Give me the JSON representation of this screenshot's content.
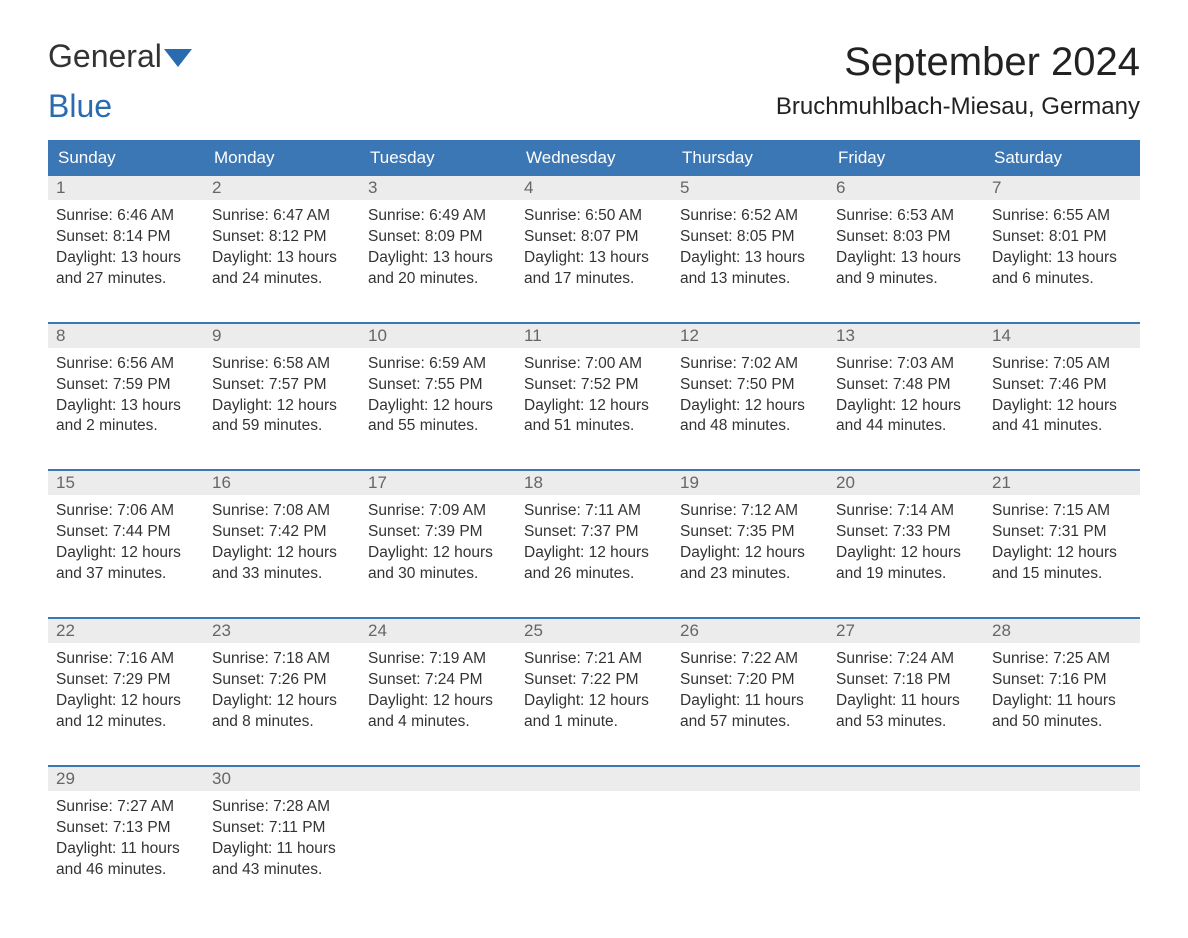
{
  "logo": {
    "text_general": "General",
    "text_blue": "Blue"
  },
  "title": "September 2024",
  "location": "Bruchmuhlbach-Miesau, Germany",
  "colors": {
    "header_bg": "#3b76b5",
    "header_text": "#ffffff",
    "daynum_bg": "#ececec",
    "daynum_text": "#666666",
    "body_text": "#333333",
    "week_border": "#3b76b5",
    "logo_blue": "#2a6bb0",
    "background": "#ffffff"
  },
  "typography": {
    "month_title_fontsize": 40,
    "location_fontsize": 24,
    "dow_fontsize": 17,
    "daynum_fontsize": 17,
    "cell_fontsize": 15.5,
    "logo_fontsize": 32
  },
  "days_of_week": [
    "Sunday",
    "Monday",
    "Tuesday",
    "Wednesday",
    "Thursday",
    "Friday",
    "Saturday"
  ],
  "weeks": [
    [
      {
        "n": "1",
        "sunrise": "Sunrise: 6:46 AM",
        "sunset": "Sunset: 8:14 PM",
        "day1": "Daylight: 13 hours",
        "day2": "and 27 minutes."
      },
      {
        "n": "2",
        "sunrise": "Sunrise: 6:47 AM",
        "sunset": "Sunset: 8:12 PM",
        "day1": "Daylight: 13 hours",
        "day2": "and 24 minutes."
      },
      {
        "n": "3",
        "sunrise": "Sunrise: 6:49 AM",
        "sunset": "Sunset: 8:09 PM",
        "day1": "Daylight: 13 hours",
        "day2": "and 20 minutes."
      },
      {
        "n": "4",
        "sunrise": "Sunrise: 6:50 AM",
        "sunset": "Sunset: 8:07 PM",
        "day1": "Daylight: 13 hours",
        "day2": "and 17 minutes."
      },
      {
        "n": "5",
        "sunrise": "Sunrise: 6:52 AM",
        "sunset": "Sunset: 8:05 PM",
        "day1": "Daylight: 13 hours",
        "day2": "and 13 minutes."
      },
      {
        "n": "6",
        "sunrise": "Sunrise: 6:53 AM",
        "sunset": "Sunset: 8:03 PM",
        "day1": "Daylight: 13 hours",
        "day2": "and 9 minutes."
      },
      {
        "n": "7",
        "sunrise": "Sunrise: 6:55 AM",
        "sunset": "Sunset: 8:01 PM",
        "day1": "Daylight: 13 hours",
        "day2": "and 6 minutes."
      }
    ],
    [
      {
        "n": "8",
        "sunrise": "Sunrise: 6:56 AM",
        "sunset": "Sunset: 7:59 PM",
        "day1": "Daylight: 13 hours",
        "day2": "and 2 minutes."
      },
      {
        "n": "9",
        "sunrise": "Sunrise: 6:58 AM",
        "sunset": "Sunset: 7:57 PM",
        "day1": "Daylight: 12 hours",
        "day2": "and 59 minutes."
      },
      {
        "n": "10",
        "sunrise": "Sunrise: 6:59 AM",
        "sunset": "Sunset: 7:55 PM",
        "day1": "Daylight: 12 hours",
        "day2": "and 55 minutes."
      },
      {
        "n": "11",
        "sunrise": "Sunrise: 7:00 AM",
        "sunset": "Sunset: 7:52 PM",
        "day1": "Daylight: 12 hours",
        "day2": "and 51 minutes."
      },
      {
        "n": "12",
        "sunrise": "Sunrise: 7:02 AM",
        "sunset": "Sunset: 7:50 PM",
        "day1": "Daylight: 12 hours",
        "day2": "and 48 minutes."
      },
      {
        "n": "13",
        "sunrise": "Sunrise: 7:03 AM",
        "sunset": "Sunset: 7:48 PM",
        "day1": "Daylight: 12 hours",
        "day2": "and 44 minutes."
      },
      {
        "n": "14",
        "sunrise": "Sunrise: 7:05 AM",
        "sunset": "Sunset: 7:46 PM",
        "day1": "Daylight: 12 hours",
        "day2": "and 41 minutes."
      }
    ],
    [
      {
        "n": "15",
        "sunrise": "Sunrise: 7:06 AM",
        "sunset": "Sunset: 7:44 PM",
        "day1": "Daylight: 12 hours",
        "day2": "and 37 minutes."
      },
      {
        "n": "16",
        "sunrise": "Sunrise: 7:08 AM",
        "sunset": "Sunset: 7:42 PM",
        "day1": "Daylight: 12 hours",
        "day2": "and 33 minutes."
      },
      {
        "n": "17",
        "sunrise": "Sunrise: 7:09 AM",
        "sunset": "Sunset: 7:39 PM",
        "day1": "Daylight: 12 hours",
        "day2": "and 30 minutes."
      },
      {
        "n": "18",
        "sunrise": "Sunrise: 7:11 AM",
        "sunset": "Sunset: 7:37 PM",
        "day1": "Daylight: 12 hours",
        "day2": "and 26 minutes."
      },
      {
        "n": "19",
        "sunrise": "Sunrise: 7:12 AM",
        "sunset": "Sunset: 7:35 PM",
        "day1": "Daylight: 12 hours",
        "day2": "and 23 minutes."
      },
      {
        "n": "20",
        "sunrise": "Sunrise: 7:14 AM",
        "sunset": "Sunset: 7:33 PM",
        "day1": "Daylight: 12 hours",
        "day2": "and 19 minutes."
      },
      {
        "n": "21",
        "sunrise": "Sunrise: 7:15 AM",
        "sunset": "Sunset: 7:31 PM",
        "day1": "Daylight: 12 hours",
        "day2": "and 15 minutes."
      }
    ],
    [
      {
        "n": "22",
        "sunrise": "Sunrise: 7:16 AM",
        "sunset": "Sunset: 7:29 PM",
        "day1": "Daylight: 12 hours",
        "day2": "and 12 minutes."
      },
      {
        "n": "23",
        "sunrise": "Sunrise: 7:18 AM",
        "sunset": "Sunset: 7:26 PM",
        "day1": "Daylight: 12 hours",
        "day2": "and 8 minutes."
      },
      {
        "n": "24",
        "sunrise": "Sunrise: 7:19 AM",
        "sunset": "Sunset: 7:24 PM",
        "day1": "Daylight: 12 hours",
        "day2": "and 4 minutes."
      },
      {
        "n": "25",
        "sunrise": "Sunrise: 7:21 AM",
        "sunset": "Sunset: 7:22 PM",
        "day1": "Daylight: 12 hours",
        "day2": "and 1 minute."
      },
      {
        "n": "26",
        "sunrise": "Sunrise: 7:22 AM",
        "sunset": "Sunset: 7:20 PM",
        "day1": "Daylight: 11 hours",
        "day2": "and 57 minutes."
      },
      {
        "n": "27",
        "sunrise": "Sunrise: 7:24 AM",
        "sunset": "Sunset: 7:18 PM",
        "day1": "Daylight: 11 hours",
        "day2": "and 53 minutes."
      },
      {
        "n": "28",
        "sunrise": "Sunrise: 7:25 AM",
        "sunset": "Sunset: 7:16 PM",
        "day1": "Daylight: 11 hours",
        "day2": "and 50 minutes."
      }
    ],
    [
      {
        "n": "29",
        "sunrise": "Sunrise: 7:27 AM",
        "sunset": "Sunset: 7:13 PM",
        "day1": "Daylight: 11 hours",
        "day2": "and 46 minutes."
      },
      {
        "n": "30",
        "sunrise": "Sunrise: 7:28 AM",
        "sunset": "Sunset: 7:11 PM",
        "day1": "Daylight: 11 hours",
        "day2": "and 43 minutes."
      },
      null,
      null,
      null,
      null,
      null
    ]
  ]
}
